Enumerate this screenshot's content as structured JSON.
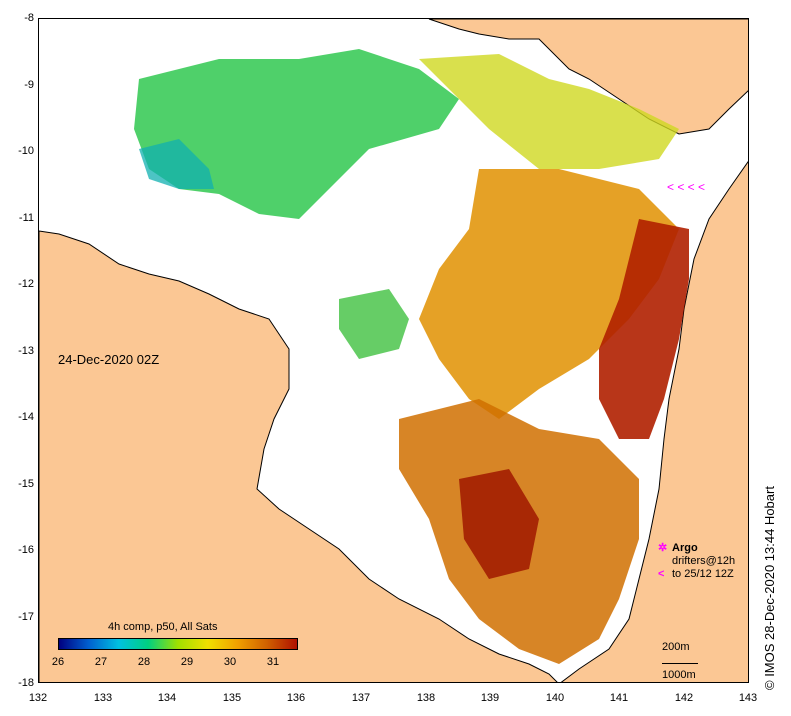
{
  "map": {
    "date_label": "24-Dec-2020 02Z",
    "legend_title": "4h comp, p50, All Sats",
    "colorbar_ticks": [
      "26",
      "27",
      "28",
      "29",
      "30",
      "31"
    ],
    "colorbar_stops": [
      "#000080",
      "#0060d0",
      "#00c0e0",
      "#00d080",
      "#a0e000",
      "#f0e000",
      "#f0a000",
      "#d06000",
      "#b01000"
    ],
    "x_ticks": [
      "132",
      "133",
      "134",
      "135",
      "136",
      "137",
      "138",
      "139",
      "140",
      "141",
      "142",
      "143"
    ],
    "y_ticks": [
      "-8",
      "-9",
      "-10",
      "-11",
      "-12",
      "-13",
      "-14",
      "-15",
      "-16",
      "-17",
      "-18"
    ],
    "argo_label": "Argo",
    "drifters_label_line1": "drifters@12h",
    "drifters_label_line2": "to 25/12 12Z",
    "depth_200": "200m",
    "depth_1000": "1000m",
    "credit": "© IMOS 28-Dec-2020 13:44 Hobart",
    "colors": {
      "land": "#fbc794",
      "water_nodata": "#ffffff",
      "marker": "#ff00ff"
    }
  }
}
